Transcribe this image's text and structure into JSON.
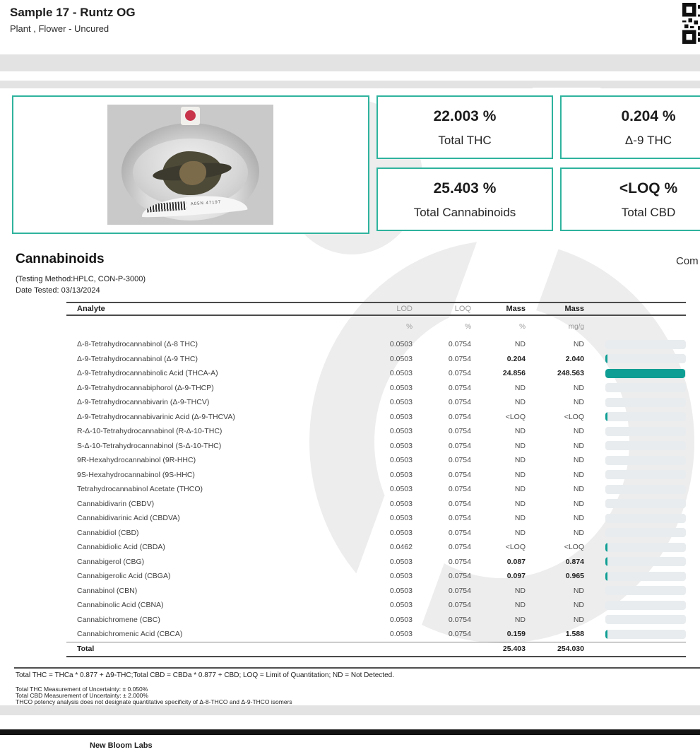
{
  "header": {
    "title": "Sample 17 - Runtz OG",
    "subtitle": "Plant , Flower - Uncured"
  },
  "stats": [
    {
      "value": "22.003 %",
      "label": "Total THC"
    },
    {
      "value": "0.204 %",
      "label": "Δ-9 THC"
    },
    {
      "value": "25.403 %",
      "label": "Total Cannabinoids"
    },
    {
      "value": "<LOQ %",
      "label": "Total CBD"
    }
  ],
  "photo": {
    "tray_label": "A05N 47197"
  },
  "section": {
    "title": "Cannabinoids",
    "right_label": "Com",
    "testing_method": "(Testing Method:HPLC, CON-P-3000)",
    "date_tested": "Date Tested: 03/13/2024"
  },
  "table": {
    "headers": [
      "Analyte",
      "LOD",
      "LOQ",
      "Mass",
      "Mass"
    ],
    "units": [
      "%",
      "%",
      "%",
      "mg/g"
    ],
    "rows": [
      {
        "analyte": "Δ-8-Tetrahydrocannabinol (Δ-8 THC)",
        "lod": "0.0503",
        "loq": "0.0754",
        "mass_pct": "ND",
        "mass_mg": "ND",
        "bar": 0
      },
      {
        "analyte": "Δ-9-Tetrahydrocannabinol (Δ-9 THC)",
        "lod": "0.0503",
        "loq": "0.0754",
        "mass_pct": "0.204",
        "mass_mg": "2.040",
        "bar": 0.204
      },
      {
        "analyte": "Δ-9-Tetrahydrocannabinolic Acid (THCA-A)",
        "lod": "0.0503",
        "loq": "0.0754",
        "mass_pct": "24.856",
        "mass_mg": "248.563",
        "bar": 24.856
      },
      {
        "analyte": "Δ-9-Tetrahydrocannabiphorol (Δ-9-THCP)",
        "lod": "0.0503",
        "loq": "0.0754",
        "mass_pct": "ND",
        "mass_mg": "ND",
        "bar": 0
      },
      {
        "analyte": "Δ-9-Tetrahydrocannabivarin (Δ-9-THCV)",
        "lod": "0.0503",
        "loq": "0.0754",
        "mass_pct": "ND",
        "mass_mg": "ND",
        "bar": 0
      },
      {
        "analyte": "Δ-9-Tetrahydrocannabivarinic Acid (Δ-9-THCVA)",
        "lod": "0.0503",
        "loq": "0.0754",
        "mass_pct": "<LOQ",
        "mass_mg": "<LOQ",
        "bar": 0.05
      },
      {
        "analyte": "R-Δ-10-Tetrahydrocannabinol (R-Δ-10-THC)",
        "lod": "0.0503",
        "loq": "0.0754",
        "mass_pct": "ND",
        "mass_mg": "ND",
        "bar": 0
      },
      {
        "analyte": "S-Δ-10-Tetrahydrocannabinol (S-Δ-10-THC)",
        "lod": "0.0503",
        "loq": "0.0754",
        "mass_pct": "ND",
        "mass_mg": "ND",
        "bar": 0
      },
      {
        "analyte": "9R-Hexahydrocannabinol (9R-HHC)",
        "lod": "0.0503",
        "loq": "0.0754",
        "mass_pct": "ND",
        "mass_mg": "ND",
        "bar": 0
      },
      {
        "analyte": "9S-Hexahydrocannabinol (9S-HHC)",
        "lod": "0.0503",
        "loq": "0.0754",
        "mass_pct": "ND",
        "mass_mg": "ND",
        "bar": 0
      },
      {
        "analyte": "Tetrahydrocannabinol Acetate (THCO)",
        "lod": "0.0503",
        "loq": "0.0754",
        "mass_pct": "ND",
        "mass_mg": "ND",
        "bar": 0
      },
      {
        "analyte": "Cannabidivarin (CBDV)",
        "lod": "0.0503",
        "loq": "0.0754",
        "mass_pct": "ND",
        "mass_mg": "ND",
        "bar": 0
      },
      {
        "analyte": "Cannabidivarinic Acid (CBDVA)",
        "lod": "0.0503",
        "loq": "0.0754",
        "mass_pct": "ND",
        "mass_mg": "ND",
        "bar": 0
      },
      {
        "analyte": "Cannabidiol (CBD)",
        "lod": "0.0503",
        "loq": "0.0754",
        "mass_pct": "ND",
        "mass_mg": "ND",
        "bar": 0
      },
      {
        "analyte": "Cannabidiolic Acid (CBDA)",
        "lod": "0.0462",
        "loq": "0.0754",
        "mass_pct": "<LOQ",
        "mass_mg": "<LOQ",
        "bar": 0.05
      },
      {
        "analyte": "Cannabigerol (CBG)",
        "lod": "0.0503",
        "loq": "0.0754",
        "mass_pct": "0.087",
        "mass_mg": "0.874",
        "bar": 0.087
      },
      {
        "analyte": "Cannabigerolic Acid (CBGA)",
        "lod": "0.0503",
        "loq": "0.0754",
        "mass_pct": "0.097",
        "mass_mg": "0.965",
        "bar": 0.097
      },
      {
        "analyte": "Cannabinol (CBN)",
        "lod": "0.0503",
        "loq": "0.0754",
        "mass_pct": "ND",
        "mass_mg": "ND",
        "bar": 0
      },
      {
        "analyte": "Cannabinolic Acid (CBNA)",
        "lod": "0.0503",
        "loq": "0.0754",
        "mass_pct": "ND",
        "mass_mg": "ND",
        "bar": 0
      },
      {
        "analyte": "Cannabichromene (CBC)",
        "lod": "0.0503",
        "loq": "0.0754",
        "mass_pct": "ND",
        "mass_mg": "ND",
        "bar": 0
      },
      {
        "analyte": "Cannabichromenic Acid (CBCA)",
        "lod": "0.0503",
        "loq": "0.0754",
        "mass_pct": "0.159",
        "mass_mg": "1.588",
        "bar": 0.159
      }
    ],
    "total": {
      "label": "Total",
      "mass_pct": "25.403",
      "mass_mg": "254.030"
    },
    "bar_max": 25
  },
  "footnotes": {
    "formula": "Total THC = THCa * 0.877 + Δ9-THC;Total CBD = CBDa * 0.877 + CBD; LOQ = Limit of Quantitation; ND = Not Detected.",
    "line1": "Total THC Measurement of Uncertainty: ± 0.050%",
    "line2": "Total CBD Measurement of Uncertainty: ± 2.000%",
    "line3": "THCO potency analysis does not designate quantitative specificity of Δ-8-THCO and Δ-9-THCO isomers"
  },
  "footer": {
    "lab_name": "New Bloom Labs"
  },
  "colors": {
    "accent_teal": "#2fb39e",
    "bar_teal": "#0f9e94",
    "sticker_red": "#c8344a"
  }
}
